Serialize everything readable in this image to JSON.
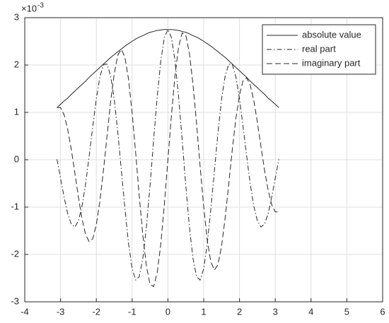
{
  "chart_data": {
    "type": "line",
    "y_exponent": {
      "base": "×10",
      "power": "-3"
    },
    "x": [
      -3.1,
      -3.0,
      -2.9,
      -2.8,
      -2.7,
      -2.6,
      -2.5,
      -2.4,
      -2.3,
      -2.2,
      -2.1,
      -2.0,
      -1.9,
      -1.8,
      -1.7,
      -1.6,
      -1.5,
      -1.4,
      -1.3,
      -1.2,
      -1.1,
      -1.0,
      -0.9,
      -0.8,
      -0.7,
      -0.6,
      -0.5,
      -0.4,
      -0.3,
      -0.2,
      -0.1,
      0,
      0.1,
      0.2,
      0.3,
      0.4,
      0.5,
      0.6,
      0.7,
      0.8,
      0.9,
      1.0,
      1.1,
      1.2,
      1.3,
      1.4,
      1.5,
      1.6,
      1.7,
      1.8,
      1.9,
      2.0,
      2.1,
      2.2,
      2.3,
      2.4,
      2.5,
      2.6,
      2.7,
      2.8,
      2.9,
      3.0,
      3.1
    ],
    "series": [
      {
        "name": "absolute value",
        "color": "#262626",
        "line_style": "solid",
        "values": [
          1.1,
          1.17,
          1.24,
          1.3,
          1.38,
          1.45,
          1.52,
          1.59,
          1.66,
          1.74,
          1.81,
          1.88,
          1.95,
          2.02,
          2.09,
          2.16,
          2.22,
          2.28,
          2.34,
          2.4,
          2.45,
          2.5,
          2.55,
          2.59,
          2.62,
          2.66,
          2.69,
          2.71,
          2.73,
          2.74,
          2.75,
          2.75,
          2.75,
          2.74,
          2.73,
          2.71,
          2.69,
          2.66,
          2.62,
          2.59,
          2.55,
          2.5,
          2.45,
          2.4,
          2.34,
          2.28,
          2.22,
          2.16,
          2.09,
          2.02,
          1.95,
          1.88,
          1.81,
          1.74,
          1.66,
          1.59,
          1.52,
          1.45,
          1.38,
          1.3,
          1.24,
          1.17,
          1.1
        ]
      },
      {
        "name": "real part",
        "color": "#262626",
        "line_style": "dash-dot",
        "values": [
          0.01,
          -0.39,
          -0.79,
          -1.14,
          -1.36,
          -1.42,
          -1.29,
          -0.98,
          -0.51,
          0.08,
          0.7,
          1.29,
          1.75,
          2.01,
          2.02,
          1.77,
          1.28,
          0.58,
          -0.23,
          -1.04,
          -1.77,
          -2.3,
          -2.54,
          -2.47,
          -2.08,
          -1.41,
          -0.55,
          0.41,
          1.32,
          2.08,
          2.58,
          2.75,
          2.58,
          2.08,
          1.32,
          0.41,
          -0.55,
          -1.41,
          -2.08,
          -2.47,
          -2.54,
          -2.3,
          -1.77,
          -1.04,
          -0.23,
          0.58,
          1.28,
          1.77,
          2.02,
          2.01,
          1.75,
          1.29,
          0.7,
          0.08,
          -0.51,
          -0.98,
          -1.29,
          -1.42,
          -1.36,
          -1.14,
          -0.79,
          -0.39,
          0.01
        ]
      },
      {
        "name": "imaginary part",
        "color": "#262626",
        "line_style": "dashed",
        "values": [
          1.1,
          1.1,
          0.95,
          0.64,
          0.22,
          -0.28,
          -0.79,
          -1.25,
          -1.58,
          -1.73,
          -1.67,
          -1.37,
          -0.87,
          -0.22,
          0.51,
          1.23,
          1.82,
          2.21,
          2.33,
          2.16,
          1.7,
          0.99,
          0.14,
          -0.77,
          -1.6,
          -2.25,
          -2.63,
          -2.68,
          -2.39,
          -1.79,
          -0.95,
          0,
          0.95,
          1.79,
          2.39,
          2.68,
          2.63,
          2.25,
          1.6,
          0.77,
          -0.14,
          -0.99,
          -1.7,
          -2.16,
          -2.33,
          -2.21,
          -1.82,
          -1.23,
          -0.51,
          0.22,
          0.87,
          1.37,
          1.67,
          1.73,
          1.58,
          1.25,
          0.79,
          0.28,
          -0.22,
          -0.64,
          -0.95,
          -1.1,
          -1.1
        ]
      }
    ],
    "xlim": [
      -4,
      6
    ],
    "xticks": [
      -4,
      -3,
      -2,
      -1,
      0,
      1,
      2,
      3,
      4,
      5,
      6
    ],
    "ylim": [
      -3,
      3
    ],
    "yticks": [
      -3,
      -2,
      -1,
      0,
      1,
      2,
      3
    ],
    "grid": true,
    "legend": "upper right"
  }
}
